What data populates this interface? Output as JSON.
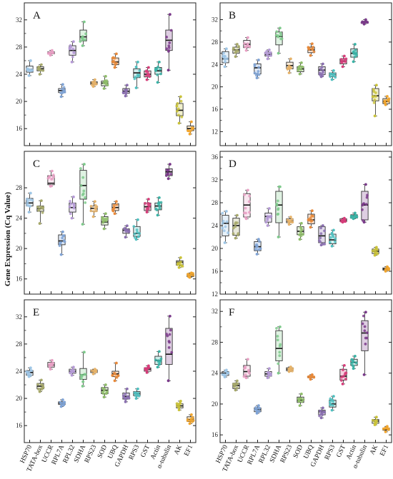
{
  "chart_data": {
    "type": "box",
    "ylabel": "Gene Expression (Cq Value)",
    "categories": [
      "HSP70",
      "TATA-box",
      "UCCR",
      "RPL7A",
      "RPL32",
      "SDHA",
      "RPS23",
      "SOD",
      "UBQ",
      "GAPDH",
      "RPS3",
      "GST",
      "Actin",
      "α-tubulin",
      "AK",
      "EF1"
    ],
    "colors": [
      "#9ec6e6",
      "#a6a86a",
      "#e8a0c4",
      "#7fa3d6",
      "#b59ad6",
      "#7fca8c",
      "#e6b36a",
      "#8fbd6a",
      "#e8893a",
      "#8a6fb0",
      "#4fc0c0",
      "#d63d7a",
      "#3ab3a6",
      "#7a3a8a",
      "#c9c23a",
      "#f0a52e"
    ],
    "panels": [
      {
        "letter": "A",
        "yticks": [
          16,
          20,
          24,
          28,
          32
        ],
        "ymin": 13.5,
        "ymax": 34.5,
        "boxes": [
          [
            23.8,
            24.3,
            24.7,
            25.2,
            26.0
          ],
          [
            24.0,
            24.5,
            24.8,
            25.1,
            25.4
          ],
          [
            26.8,
            27.0,
            27.2,
            27.3,
            27.5
          ],
          [
            20.7,
            21.3,
            21.6,
            21.9,
            22.5
          ],
          [
            25.8,
            26.8,
            27.5,
            28.2,
            28.8
          ],
          [
            28.2,
            28.9,
            29.5,
            30.5,
            31.7
          ],
          [
            22.2,
            22.5,
            22.7,
            22.9,
            23.2
          ],
          [
            21.9,
            22.3,
            22.7,
            23.0,
            23.7
          ],
          [
            25.0,
            25.4,
            25.8,
            26.4,
            27.0
          ],
          [
            20.8,
            21.2,
            21.5,
            21.9,
            22.4
          ],
          [
            22.0,
            23.5,
            24.2,
            24.8,
            25.8
          ],
          [
            23.2,
            23.6,
            24.0,
            24.5,
            25.0
          ],
          [
            22.8,
            24.0,
            24.5,
            25.0,
            25.8
          ],
          [
            24.6,
            27.5,
            29.0,
            30.5,
            32.8
          ],
          [
            16.8,
            17.9,
            18.7,
            19.7,
            20.7
          ],
          [
            15.2,
            15.7,
            16.0,
            16.4,
            17.0
          ]
        ]
      },
      {
        "letter": "B",
        "yticks": [
          12,
          16,
          20,
          24,
          28,
          32
        ],
        "ymin": 9.5,
        "ymax": 35.0,
        "boxes": [
          [
            23.6,
            24.3,
            25.0,
            26.3,
            26.8
          ],
          [
            25.4,
            26.0,
            26.6,
            27.1,
            27.6
          ],
          [
            26.5,
            27.0,
            27.6,
            28.3,
            28.8
          ],
          [
            21.6,
            22.3,
            23.4,
            24.1,
            24.8
          ],
          [
            25.0,
            25.5,
            25.8,
            26.2,
            26.6
          ],
          [
            26.0,
            27.5,
            29.0,
            29.8,
            30.5
          ],
          [
            22.5,
            23.2,
            23.8,
            24.4,
            25.0
          ],
          [
            22.3,
            22.7,
            23.2,
            23.6,
            24.3
          ],
          [
            25.6,
            26.1,
            26.6,
            27.1,
            27.7
          ],
          [
            21.8,
            22.2,
            23.0,
            23.6,
            24.1
          ],
          [
            21.3,
            21.8,
            22.2,
            22.5,
            22.9
          ],
          [
            23.6,
            24.1,
            24.6,
            25.0,
            25.5
          ],
          [
            24.5,
            25.3,
            26.0,
            26.8,
            27.6
          ],
          [
            31.2,
            31.4,
            31.5,
            31.7,
            32.0
          ],
          [
            14.8,
            17.5,
            18.4,
            19.7,
            20.3
          ],
          [
            16.8,
            17.0,
            17.4,
            17.9,
            18.3
          ]
        ]
      },
      {
        "letter": "C",
        "yticks": [
          16,
          20,
          24,
          28
        ],
        "ymin": 14.0,
        "ymax": 32.8,
        "boxes": [
          [
            24.8,
            25.6,
            26.0,
            26.6,
            27.3
          ],
          [
            23.3,
            24.9,
            25.3,
            25.6,
            26.3
          ],
          [
            28.2,
            28.4,
            28.6,
            29.6,
            30.2
          ],
          [
            19.2,
            20.5,
            21.0,
            21.8,
            22.2
          ],
          [
            24.0,
            24.8,
            25.4,
            26.0,
            26.8
          ],
          [
            23.2,
            26.5,
            28.3,
            30.3,
            31.1
          ],
          [
            24.2,
            24.9,
            25.3,
            25.6,
            26.2
          ],
          [
            22.6,
            23.1,
            23.5,
            24.2,
            24.6
          ],
          [
            24.6,
            25.0,
            25.4,
            25.9,
            26.2
          ],
          [
            21.5,
            22.0,
            22.4,
            22.6,
            23.0
          ],
          [
            21.2,
            21.6,
            22.0,
            22.9,
            23.8
          ],
          [
            24.8,
            25.0,
            25.5,
            26.0,
            26.5
          ],
          [
            24.4,
            25.1,
            25.6,
            26.0,
            26.7
          ],
          [
            29.2,
            29.6,
            30.1,
            30.5,
            31.1
          ],
          [
            17.5,
            17.8,
            18.2,
            18.4,
            18.8
          ],
          [
            16.2,
            16.3,
            16.5,
            16.7,
            16.8
          ]
        ]
      },
      {
        "letter": "D",
        "yticks": [
          12,
          16,
          20,
          24,
          28,
          32,
          36
        ],
        "ymin": 12.0,
        "ymax": 37.0,
        "boxes": [
          [
            21.0,
            22.2,
            24.4,
            25.8,
            26.5
          ],
          [
            21.8,
            22.3,
            24.0,
            25.3,
            25.8
          ],
          [
            25.2,
            25.5,
            27.6,
            29.6,
            30.2
          ],
          [
            19.0,
            19.6,
            20.3,
            21.2,
            21.6
          ],
          [
            24.0,
            24.6,
            25.6,
            26.2,
            27.0
          ],
          [
            22.0,
            24.5,
            27.6,
            30.0,
            30.8
          ],
          [
            24.2,
            24.5,
            24.8,
            25.2,
            25.5
          ],
          [
            21.6,
            22.4,
            23.0,
            23.8,
            24.4
          ],
          [
            23.7,
            24.3,
            25.0,
            26.0,
            26.6
          ],
          [
            20.6,
            21.0,
            22.2,
            23.8,
            24.0
          ],
          [
            20.4,
            20.8,
            21.5,
            22.5,
            23.2
          ],
          [
            24.6,
            24.7,
            24.9,
            25.2,
            25.3
          ],
          [
            25.2,
            25.3,
            25.7,
            25.9,
            26.2
          ],
          [
            24.6,
            25.0,
            27.6,
            30.0,
            31.2
          ],
          [
            18.8,
            19.1,
            19.5,
            19.9,
            20.2
          ],
          [
            16.0,
            16.2,
            16.4,
            16.6,
            16.8
          ]
        ]
      },
      {
        "letter": "E",
        "yticks": [
          16,
          20,
          24,
          28,
          32
        ],
        "ymin": 13.5,
        "ymax": 34.5,
        "boxes": [
          [
            23.2,
            23.4,
            23.8,
            24.1,
            24.5
          ],
          [
            21.0,
            21.4,
            21.8,
            22.2,
            22.7
          ],
          [
            24.3,
            24.6,
            24.9,
            25.3,
            25.6
          ],
          [
            18.8,
            19.1,
            19.3,
            19.5,
            19.8
          ],
          [
            23.4,
            23.7,
            24.0,
            24.3,
            24.6
          ],
          [
            21.8,
            22.8,
            23.5,
            24.4,
            26.8
          ],
          [
            23.6,
            23.8,
            24.0,
            24.2,
            24.3
          ],
          [
            20.2,
            20.7,
            21.2,
            21.6,
            22.0
          ],
          [
            22.6,
            23.2,
            23.6,
            24.0,
            25.2
          ],
          [
            19.5,
            19.9,
            20.3,
            20.8,
            21.4
          ],
          [
            20.0,
            20.4,
            20.7,
            21.0,
            21.4
          ],
          [
            23.8,
            24.0,
            24.3,
            24.5,
            24.8
          ],
          [
            24.6,
            25.0,
            25.6,
            26.2,
            26.9
          ],
          [
            22.6,
            25.0,
            26.5,
            30.3,
            32.1
          ],
          [
            18.3,
            18.6,
            18.9,
            19.2,
            19.6
          ],
          [
            16.3,
            16.6,
            16.9,
            17.3,
            17.6
          ]
        ]
      },
      {
        "letter": "F",
        "yticks": [
          16,
          20,
          24,
          28,
          32
        ],
        "ymin": 15.0,
        "ymax": 33.5,
        "boxes": [
          [
            23.5,
            23.7,
            24.0,
            24.2,
            24.4
          ],
          [
            21.8,
            22.0,
            22.4,
            22.7,
            23.0
          ],
          [
            23.4,
            23.6,
            24.2,
            25.0,
            25.8
          ],
          [
            18.8,
            19.0,
            19.3,
            19.5,
            19.8
          ],
          [
            23.4,
            23.6,
            23.9,
            24.2,
            24.6
          ],
          [
            24.0,
            25.6,
            27.2,
            29.5,
            30.0
          ],
          [
            24.2,
            24.3,
            24.5,
            24.7,
            24.8
          ],
          [
            19.8,
            20.2,
            20.5,
            20.9,
            21.3
          ],
          [
            23.2,
            23.4,
            23.5,
            23.6,
            23.8
          ],
          [
            18.2,
            18.6,
            19.0,
            19.2,
            19.5
          ],
          [
            19.2,
            19.6,
            20.0,
            20.5,
            21.0
          ],
          [
            22.6,
            23.1,
            23.6,
            24.5,
            25.0
          ],
          [
            24.6,
            25.0,
            25.4,
            25.8,
            26.2
          ],
          [
            23.8,
            26.9,
            29.2,
            30.8,
            31.9
          ],
          [
            17.3,
            17.5,
            17.8,
            18.0,
            18.3
          ],
          [
            16.4,
            16.6,
            16.7,
            16.9,
            17.1
          ]
        ]
      }
    ]
  }
}
